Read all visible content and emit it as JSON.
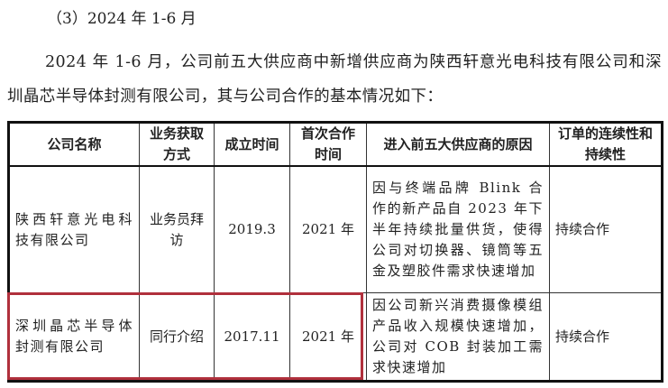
{
  "section_heading": "（3）2024 年 1-6 月",
  "paragraph": "2024 年 1-6 月，公司前五大供应商中新增供应商为陕西轩意光电科技有限公司和深圳晶芯半导体封测有限公司，其与公司合作的基本情况如下：",
  "table": {
    "headers": [
      "公司名称",
      "业务获取方式",
      "成立时间",
      "首次合作时间",
      "进入前五大供应商的原因",
      "订单的连续性和持续性"
    ],
    "rows": [
      [
        "陕西轩意光电科技有限公司",
        "业务员拜访",
        "2019.3",
        "2021 年",
        "因与终端品牌 Blink 合作的新产品自 2023 年下半年持续批量供货，使得公司对切换器、镜筒等五金及塑胶件需求快速增加",
        "持续合作"
      ],
      [
        "深圳晶芯半导体封测有限公司",
        "同行介绍",
        "2017.11",
        "2021 年",
        "因公司新兴消费摄像模组产品收入规模快速增加，公司对 COB 封装加工需求快速增加",
        "持续合作"
      ]
    ]
  },
  "highlight_color": "#b0303c"
}
